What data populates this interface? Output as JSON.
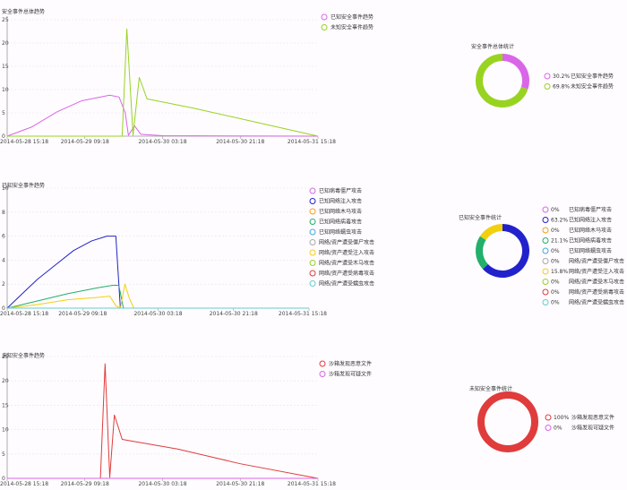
{
  "chart_data": [
    {
      "type": "line",
      "title": "安全事件总体趋势",
      "x_ticks": [
        "2014-05-28 15:18",
        "2014-05-29 09:18",
        "2014-05-30 03:18",
        "2014-05-30 21:18",
        "2014-05-31 15:18"
      ],
      "y_ticks": [
        "0",
        "5",
        "10",
        "15",
        "20",
        "25"
      ],
      "ylim": [
        0,
        25
      ],
      "legend": "right",
      "series": [
        {
          "name": "已知安全事件趋势",
          "color": "#d966e8",
          "points": [
            [
              0,
              0
            ],
            [
              0.08,
              2
            ],
            [
              0.16,
              5.2
            ],
            [
              0.24,
              7.6
            ],
            [
              0.33,
              8.8
            ],
            [
              0.36,
              8.4
            ],
            [
              0.38,
              5
            ],
            [
              0.39,
              0.2
            ],
            [
              0.41,
              2.2
            ],
            [
              0.43,
              0.4
            ],
            [
              0.5,
              0.1
            ],
            [
              1,
              0
            ]
          ]
        },
        {
          "name": "未知安全事件趋势",
          "color": "#99d322",
          "points": [
            [
              0,
              0
            ],
            [
              0.37,
              0
            ],
            [
              0.385,
              23
            ],
            [
              0.405,
              0.2
            ],
            [
              0.425,
              12.6
            ],
            [
              0.45,
              8
            ],
            [
              0.6,
              6
            ],
            [
              0.8,
              3
            ],
            [
              1,
              0
            ]
          ]
        }
      ]
    },
    {
      "type": "donut",
      "title": "安全事件总体统计",
      "series": [
        {
          "name": "已知安全事件趋势",
          "label": "30.2%",
          "value": 30.2,
          "color": "#d966e8"
        },
        {
          "name": "未知安全事件趋势",
          "label": "69.8%",
          "value": 69.8,
          "color": "#99d322"
        }
      ]
    },
    {
      "type": "line",
      "title": "已知安全事件趋势",
      "x_ticks": [
        "2014-05-28 15:18",
        "2014-05-29 09:18",
        "2014-05-30 03:18",
        "2014-05-30 21:18",
        "2014-05-31 15:18"
      ],
      "y_ticks": [
        "0",
        "2",
        "4",
        "6",
        "8",
        "10"
      ],
      "ylim": [
        0,
        10
      ],
      "legend": "right",
      "series": [
        {
          "name": "已知病毒僵尸攻击",
          "color": "#d966e8",
          "points": [
            [
              0,
              0
            ],
            [
              1,
              0
            ]
          ]
        },
        {
          "name": "已知网络注入攻击",
          "color": "#2222cc",
          "points": [
            [
              0,
              0
            ],
            [
              0.05,
              1.2
            ],
            [
              0.1,
              2.4
            ],
            [
              0.16,
              3.6
            ],
            [
              0.22,
              4.8
            ],
            [
              0.28,
              5.6
            ],
            [
              0.33,
              6
            ],
            [
              0.36,
              6
            ],
            [
              0.375,
              0
            ],
            [
              1,
              0
            ]
          ]
        },
        {
          "name": "已知网络木马攻击",
          "color": "#f0a020",
          "points": [
            [
              0,
              0
            ],
            [
              1,
              0
            ]
          ]
        },
        {
          "name": "已知网络病毒攻击",
          "color": "#22b06a",
          "points": [
            [
              0,
              0
            ],
            [
              0.1,
              0.6
            ],
            [
              0.2,
              1.2
            ],
            [
              0.3,
              1.7
            ],
            [
              0.35,
              1.9
            ],
            [
              0.37,
              1.9
            ],
            [
              0.385,
              0
            ],
            [
              1,
              0
            ]
          ]
        },
        {
          "name": "已知网络蠕虫攻击",
          "color": "#44aadd",
          "points": [
            [
              0,
              0
            ],
            [
              1,
              0
            ]
          ]
        },
        {
          "name": "网络/资产遭受僵尸攻击",
          "color": "#aaaaaa",
          "points": [
            [
              0,
              0
            ],
            [
              1,
              0
            ]
          ]
        },
        {
          "name": "网络/资产遭受注入攻击",
          "color": "#f2d010",
          "points": [
            [
              0,
              0
            ],
            [
              0.1,
              0.3
            ],
            [
              0.2,
              0.7
            ],
            [
              0.3,
              0.9
            ],
            [
              0.34,
              1
            ],
            [
              0.36,
              0.2
            ],
            [
              0.375,
              0
            ],
            [
              0.39,
              2
            ],
            [
              0.405,
              0.8
            ],
            [
              0.42,
              0
            ],
            [
              1,
              0
            ]
          ]
        },
        {
          "name": "网络/资产遭受木马攻击",
          "color": "#99d322",
          "points": [
            [
              0,
              0
            ],
            [
              1,
              0
            ]
          ]
        },
        {
          "name": "网络/资产遭受病毒攻击",
          "color": "#e03c3c",
          "points": [
            [
              0,
              0
            ],
            [
              1,
              0
            ]
          ]
        },
        {
          "name": "网络/资产遭受蠕虫攻击",
          "color": "#66cccc",
          "points": [
            [
              0,
              0
            ],
            [
              1,
              0
            ]
          ]
        }
      ]
    },
    {
      "type": "donut",
      "title": "已知安全事件统计",
      "series": [
        {
          "name": "已知病毒僵尸攻击",
          "label": "0%",
          "value": 0,
          "color": "#d966e8"
        },
        {
          "name": "已知网络注入攻击",
          "label": "63.2%",
          "value": 63.2,
          "color": "#2222cc"
        },
        {
          "name": "已知网络木马攻击",
          "label": "0%",
          "value": 0,
          "color": "#f0a020"
        },
        {
          "name": "已知网络病毒攻击",
          "label": "21.1%",
          "value": 21.1,
          "color": "#22b06a"
        },
        {
          "name": "已知网络蠕虫攻击",
          "label": "0%",
          "value": 0,
          "color": "#44aadd"
        },
        {
          "name": "网络/资产遭受僵尸攻击",
          "label": "0%",
          "value": 0,
          "color": "#aaaaaa"
        },
        {
          "name": "网络/资产遭受注入攻击",
          "label": "15.8%",
          "value": 15.8,
          "color": "#f2d010"
        },
        {
          "name": "网络/资产遭受木马攻击",
          "label": "0%",
          "value": 0,
          "color": "#99d322"
        },
        {
          "name": "网络/资产遭受病毒攻击",
          "label": "0%",
          "value": 0,
          "color": "#e03c3c"
        },
        {
          "name": "网络/资产遭受蠕虫攻击",
          "label": "0%",
          "value": 0,
          "color": "#66cccc"
        }
      ]
    },
    {
      "type": "line",
      "title": "未知安全事件趋势",
      "x_ticks": [
        "2014-05-28 15:18",
        "2014-05-29 09:18",
        "2014-05-30 03:18",
        "2014-05-30 21:18",
        "2014-05-31 15:18"
      ],
      "y_ticks": [
        "0",
        "5",
        "10",
        "15",
        "20",
        "25"
      ],
      "ylim": [
        0,
        25
      ],
      "legend": "right",
      "series": [
        {
          "name": "沙箱发现恶意文件",
          "color": "#e03c3c",
          "points": [
            [
              0,
              0
            ],
            [
              0.3,
              0
            ],
            [
              0.315,
              23.5
            ],
            [
              0.33,
              0.2
            ],
            [
              0.345,
              13
            ],
            [
              0.37,
              8
            ],
            [
              0.55,
              6
            ],
            [
              0.75,
              3
            ],
            [
              1,
              0
            ]
          ]
        },
        {
          "name": "沙箱发现可疑文件",
          "color": "#d966e8",
          "points": [
            [
              0,
              0
            ],
            [
              1,
              0
            ]
          ]
        }
      ]
    },
    {
      "type": "donut",
      "title": "未知安全事件统计",
      "series": [
        {
          "name": "沙箱发现恶意文件",
          "label": "100%",
          "value": 100,
          "color": "#e03c3c"
        },
        {
          "name": "沙箱发现可疑文件",
          "label": "0%",
          "value": 0,
          "color": "#d966e8"
        }
      ]
    }
  ]
}
